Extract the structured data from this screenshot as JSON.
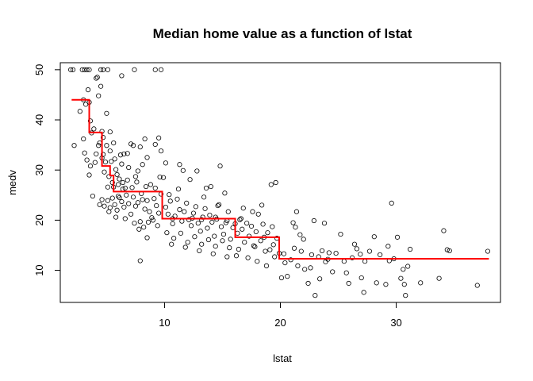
{
  "chart_data": {
    "type": "scatter",
    "title": "Median home value as a function of lstat",
    "xlabel": "lstat",
    "ylabel": "medv",
    "xlim": [
      1,
      39
    ],
    "ylim": [
      3.6,
      51.4
    ],
    "x_ticks": [
      10,
      20,
      30
    ],
    "y_ticks": [
      10,
      20,
      30,
      40,
      50
    ],
    "grid": false,
    "legend": "none",
    "colors": {
      "points": "#000000",
      "step_line": "#ff0000"
    },
    "series": [
      {
        "type": "scatter",
        "marker": "open-circle",
        "points": [
          [
            1.9,
            50
          ],
          [
            2.1,
            50
          ],
          [
            2.9,
            50
          ],
          [
            3.1,
            50
          ],
          [
            3.3,
            50
          ],
          [
            3.5,
            50
          ],
          [
            4.5,
            50
          ],
          [
            4.7,
            50
          ],
          [
            5.1,
            50
          ],
          [
            9.2,
            50
          ],
          [
            9.7,
            50
          ],
          [
            7.4,
            50
          ],
          [
            2.2,
            34.9
          ],
          [
            2.7,
            41.7
          ],
          [
            3.0,
            44
          ],
          [
            3.2,
            43.1
          ],
          [
            3.4,
            46
          ],
          [
            3.5,
            43.5
          ],
          [
            3.6,
            39.8
          ],
          [
            3.7,
            37.4
          ],
          [
            3.9,
            38.2
          ],
          [
            4.1,
            48.3
          ],
          [
            4.2,
            48.5
          ],
          [
            4.3,
            44.8
          ],
          [
            4.5,
            46.7
          ],
          [
            4.6,
            37.7
          ],
          [
            4.7,
            36.5
          ],
          [
            5.0,
            41.3
          ],
          [
            5.3,
            37.6
          ],
          [
            6.3,
            48.8
          ],
          [
            3.0,
            36.2
          ],
          [
            3.1,
            33.4
          ],
          [
            3.3,
            32
          ],
          [
            3.5,
            29
          ],
          [
            3.6,
            30.8
          ],
          [
            3.8,
            24.8
          ],
          [
            4.0,
            31.5
          ],
          [
            4.1,
            33.2
          ],
          [
            4.3,
            34.9
          ],
          [
            4.4,
            35.4
          ],
          [
            4.6,
            32.4
          ],
          [
            4.7,
            33.1
          ],
          [
            4.8,
            29.6
          ],
          [
            4.9,
            31.6
          ],
          [
            5.0,
            34.9
          ],
          [
            5.1,
            26.6
          ],
          [
            5.2,
            28.7
          ],
          [
            5.3,
            33.8
          ],
          [
            5.4,
            31.7
          ],
          [
            5.5,
            27.5
          ],
          [
            5.6,
            35.4
          ],
          [
            5.7,
            32.2
          ],
          [
            5.8,
            30.1
          ],
          [
            5.9,
            29.1
          ],
          [
            6.0,
            24.8
          ],
          [
            6.1,
            28.2
          ],
          [
            6.2,
            33
          ],
          [
            6.3,
            31.2
          ],
          [
            6.4,
            27.5
          ],
          [
            6.5,
            33.2
          ],
          [
            6.6,
            26.4
          ],
          [
            6.8,
            33.3
          ],
          [
            6.9,
            30.5
          ],
          [
            7.1,
            35.2
          ],
          [
            7.3,
            34.9
          ],
          [
            7.5,
            28.7
          ],
          [
            7.7,
            29.8
          ],
          [
            7.9,
            34.6
          ],
          [
            8.1,
            31.1
          ],
          [
            8.3,
            36.2
          ],
          [
            8.5,
            32.5
          ],
          [
            9.2,
            35.1
          ],
          [
            9.5,
            36.4
          ],
          [
            9.7,
            33.8
          ],
          [
            9.9,
            28.5
          ],
          [
            4.4,
            23.1
          ],
          [
            4.6,
            24.1
          ],
          [
            4.8,
            22.8
          ],
          [
            5.1,
            23.9
          ],
          [
            5.3,
            22.5
          ],
          [
            5.5,
            24.4
          ],
          [
            5.7,
            23.1
          ],
          [
            5.9,
            22
          ],
          [
            6.1,
            24.5
          ],
          [
            6.3,
            23.7
          ],
          [
            6.5,
            22.6
          ],
          [
            6.7,
            25
          ],
          [
            6.9,
            23.3
          ],
          [
            7.1,
            21.2
          ],
          [
            7.3,
            24.6
          ],
          [
            7.5,
            22.8
          ],
          [
            7.7,
            23.5
          ],
          [
            7.9,
            19.7
          ],
          [
            8.1,
            24.1
          ],
          [
            8.3,
            22.2
          ],
          [
            8.5,
            23.9
          ],
          [
            8.7,
            21.7
          ],
          [
            8.9,
            20.5
          ],
          [
            9.1,
            24.3
          ],
          [
            9.3,
            22.9
          ],
          [
            9.5,
            21.4
          ],
          [
            9.7,
            25.2
          ],
          [
            5.6,
            26.6
          ],
          [
            6.0,
            27.1
          ],
          [
            6.4,
            26.2
          ],
          [
            6.8,
            28
          ],
          [
            7.2,
            26.5
          ],
          [
            7.6,
            27.6
          ],
          [
            8.0,
            25.3
          ],
          [
            8.4,
            26.7
          ],
          [
            8.8,
            27.1
          ],
          [
            9.2,
            26.4
          ],
          [
            9.6,
            28.6
          ],
          [
            5.2,
            21.7
          ],
          [
            5.8,
            20.6
          ],
          [
            6.6,
            20.3
          ],
          [
            7.4,
            19.4
          ],
          [
            8.2,
            18.6
          ],
          [
            9.0,
            20
          ],
          [
            7.8,
            18.2
          ],
          [
            8.6,
            19.6
          ],
          [
            9.4,
            18.9
          ],
          [
            7.9,
            11.9
          ],
          [
            8.5,
            16.5
          ],
          [
            10.1,
            22.6
          ],
          [
            10.3,
            21.2
          ],
          [
            10.5,
            23.8
          ],
          [
            10.7,
            19.3
          ],
          [
            10.9,
            20.8
          ],
          [
            11.1,
            24.2
          ],
          [
            11.3,
            22.1
          ],
          [
            11.5,
            19.8
          ],
          [
            11.7,
            21.7
          ],
          [
            11.9,
            23.4
          ],
          [
            12.1,
            20.1
          ],
          [
            12.3,
            18.9
          ],
          [
            12.5,
            21.4
          ],
          [
            12.7,
            22.7
          ],
          [
            12.9,
            19.4
          ],
          [
            13.1,
            17.8
          ],
          [
            13.3,
            20.6
          ],
          [
            13.5,
            22.3
          ],
          [
            13.7,
            18.4
          ],
          [
            13.9,
            21
          ],
          [
            14.1,
            19.6
          ],
          [
            14.3,
            16.8
          ],
          [
            14.5,
            20.2
          ],
          [
            14.7,
            23.1
          ],
          [
            14.9,
            18.7
          ],
          [
            15.1,
            17.2
          ],
          [
            15.3,
            19.5
          ],
          [
            15.5,
            21.7
          ],
          [
            15.7,
            16.2
          ],
          [
            15.9,
            18.5
          ],
          [
            10.2,
            17.5
          ],
          [
            10.8,
            16.4
          ],
          [
            11.4,
            17.4
          ],
          [
            12.0,
            15.6
          ],
          [
            12.6,
            16.7
          ],
          [
            13.2,
            15.2
          ],
          [
            13.8,
            16.1
          ],
          [
            14.4,
            14.8
          ],
          [
            15.0,
            15.9
          ],
          [
            15.6,
            14.5
          ],
          [
            10.6,
            15.2
          ],
          [
            11.8,
            14.6
          ],
          [
            13.0,
            13.9
          ],
          [
            14.2,
            13.3
          ],
          [
            15.4,
            12.7
          ],
          [
            10.4,
            25.1
          ],
          [
            11.2,
            26.2
          ],
          [
            11.6,
            29.9
          ],
          [
            12.2,
            28.1
          ],
          [
            13.4,
            24.6
          ],
          [
            14.0,
            26.7
          ],
          [
            14.6,
            22.9
          ],
          [
            15.2,
            25.4
          ],
          [
            10.1,
            31.4
          ],
          [
            11.3,
            31.1
          ],
          [
            12.8,
            29.8
          ],
          [
            13.6,
            26.4
          ],
          [
            14.8,
            30.8
          ],
          [
            10.7,
            20.3
          ],
          [
            12.4,
            20.4
          ],
          [
            13.2,
            20.1
          ],
          [
            14.4,
            20.6
          ],
          [
            15.4,
            19.9
          ],
          [
            16.1,
            19.3
          ],
          [
            16.3,
            17.4
          ],
          [
            16.5,
            20.1
          ],
          [
            16.7,
            18.2
          ],
          [
            16.9,
            15.6
          ],
          [
            17.1,
            19.4
          ],
          [
            17.3,
            16.8
          ],
          [
            17.5,
            18.8
          ],
          [
            17.7,
            14.9
          ],
          [
            17.9,
            17.7
          ],
          [
            18.1,
            21.2
          ],
          [
            18.3,
            15.9
          ],
          [
            18.5,
            19.2
          ],
          [
            18.7,
            13.8
          ],
          [
            18.9,
            17.5
          ],
          [
            19.1,
            14.1
          ],
          [
            19.3,
            18.7
          ],
          [
            19.5,
            12.7
          ],
          [
            19.7,
            16.4
          ],
          [
            19.9,
            13.4
          ],
          [
            16.4,
            14.2
          ],
          [
            17.2,
            12.5
          ],
          [
            18.0,
            11.8
          ],
          [
            18.8,
            10.9
          ],
          [
            16.8,
            22.4
          ],
          [
            17.6,
            21.7
          ],
          [
            18.4,
            23
          ],
          [
            19.2,
            27.1
          ],
          [
            19.6,
            27.5
          ],
          [
            16.2,
            12.9
          ],
          [
            17.8,
            14.7
          ],
          [
            18.6,
            16.6
          ],
          [
            19.4,
            15.1
          ],
          [
            16.6,
            20.3
          ],
          [
            20.1,
            8.5
          ],
          [
            20.3,
            13.3
          ],
          [
            20.6,
            8.8
          ],
          [
            20.9,
            12.1
          ],
          [
            21.2,
            14.4
          ],
          [
            21.5,
            10.9
          ],
          [
            21.8,
            13.8
          ],
          [
            22.1,
            10.2
          ],
          [
            22.4,
            7.4
          ],
          [
            22.7,
            13.1
          ],
          [
            23.0,
            5.0
          ],
          [
            23.3,
            12.7
          ],
          [
            23.6,
            13.9
          ],
          [
            23.9,
            11.7
          ],
          [
            24.2,
            13.5
          ],
          [
            24.5,
            9.7
          ],
          [
            24.8,
            13.4
          ],
          [
            21.1,
            19.5
          ],
          [
            21.4,
            21.7
          ],
          [
            21.7,
            17.1
          ],
          [
            22.0,
            16.2
          ],
          [
            22.9,
            19.9
          ],
          [
            23.8,
            19.4
          ],
          [
            20.4,
            11.5
          ],
          [
            21.3,
            18.6
          ],
          [
            22.6,
            10.5
          ],
          [
            23.4,
            8.3
          ],
          [
            24.1,
            12.2
          ],
          [
            25.2,
            17.2
          ],
          [
            25.7,
            9.5
          ],
          [
            26.2,
            12.5
          ],
          [
            26.6,
            14.3
          ],
          [
            26.9,
            13.2
          ],
          [
            27.3,
            11.8
          ],
          [
            27.7,
            13.8
          ],
          [
            28.1,
            16.7
          ],
          [
            28.6,
            13.1
          ],
          [
            29.1,
            7.2
          ],
          [
            29.4,
            11.9
          ],
          [
            29.6,
            23.4
          ],
          [
            29.8,
            12.3
          ],
          [
            30.1,
            16.6
          ],
          [
            30.4,
            8.4
          ],
          [
            30.7,
            7.2
          ],
          [
            31.0,
            10.8
          ],
          [
            25.9,
            7.4
          ],
          [
            26.4,
            15.2
          ],
          [
            27.0,
            8.5
          ],
          [
            28.3,
            7.5
          ],
          [
            29.3,
            14.8
          ],
          [
            30.6,
            10.2
          ],
          [
            30.8,
            5.0
          ],
          [
            31.2,
            14.2
          ],
          [
            32.1,
            7.5
          ],
          [
            33.7,
            8.4
          ],
          [
            34.1,
            17.9
          ],
          [
            34.4,
            14.1
          ],
          [
            34.6,
            13.9
          ],
          [
            37.0,
            7.0
          ],
          [
            37.9,
            13.8
          ],
          [
            27.2,
            5.6
          ],
          [
            25.5,
            11.8
          ]
        ]
      },
      {
        "type": "step",
        "name": "",
        "steps": [
          {
            "x_from": 1.98,
            "x_to": 3.5,
            "y": 44.0
          },
          {
            "x_from": 3.5,
            "x_to": 4.6,
            "y": 37.5
          },
          {
            "x_from": 4.6,
            "x_to": 5.3,
            "y": 30.8
          },
          {
            "x_from": 5.3,
            "x_to": 5.6,
            "y": 28.9
          },
          {
            "x_from": 5.6,
            "x_to": 9.8,
            "y": 25.7
          },
          {
            "x_from": 9.8,
            "x_to": 16.1,
            "y": 20.3
          },
          {
            "x_from": 16.1,
            "x_to": 19.9,
            "y": 16.6
          },
          {
            "x_from": 19.9,
            "x_to": 38.0,
            "y": 12.3
          }
        ]
      }
    ]
  }
}
